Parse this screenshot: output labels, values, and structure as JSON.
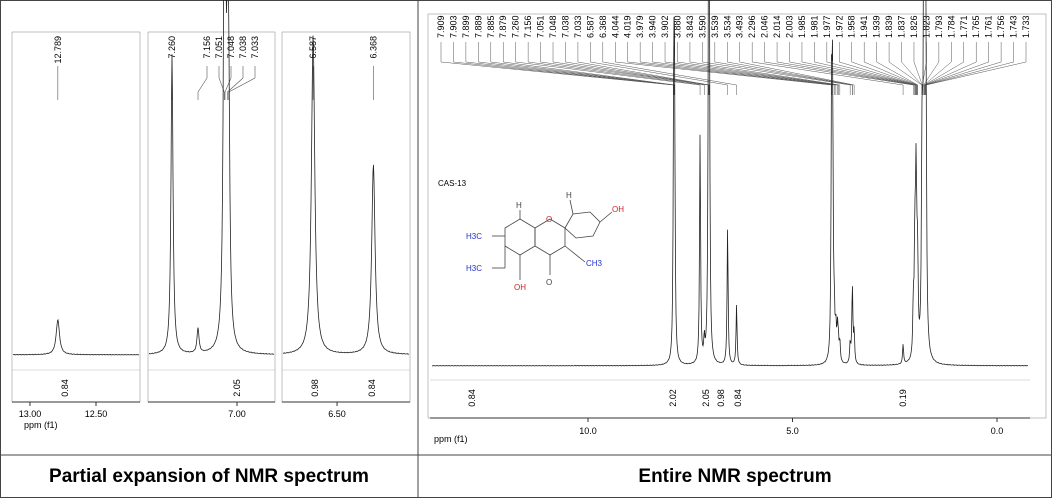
{
  "left_panel": {
    "plots": [
      {
        "peaks": [
          "12.789"
        ],
        "integrals": [
          "0.84"
        ],
        "ticks": [
          "13.00",
          "12.50"
        ],
        "axis_label": "ppm (f1)"
      },
      {
        "peaks": [
          "7.260",
          "7.156",
          "7.051",
          "7.048",
          "7.038",
          "7.033"
        ],
        "integrals": [
          "2.05"
        ],
        "ticks": [
          "7.00"
        ]
      },
      {
        "peaks": [
          "6.587",
          "6.368"
        ],
        "integrals": [
          "0.98",
          "0.84"
        ],
        "ticks": [
          "6.50"
        ]
      }
    ],
    "caption": "Partial expansion of NMR spectrum"
  },
  "right_panel": {
    "sample": "CAS-13",
    "peaks": [
      "7.909",
      "7.903",
      "7.899",
      "7.889",
      "7.885",
      "7.879",
      "7.260",
      "7.156",
      "7.051",
      "7.048",
      "7.038",
      "7.033",
      "6.587",
      "6.368",
      "4.044",
      "4.019",
      "3.979",
      "3.940",
      "3.902",
      "3.880",
      "3.843",
      "3.590",
      "3.539",
      "3.534",
      "3.493",
      "2.296",
      "2.046",
      "2.014",
      "2.003",
      "1.985",
      "1.981",
      "1.977",
      "1.972",
      "1.958",
      "1.941",
      "1.939",
      "1.839",
      "1.837",
      "1.826",
      "1.823",
      "1.793",
      "1.784",
      "1.771",
      "1.765",
      "1.761",
      "1.756",
      "1.743",
      "1.733"
    ],
    "integrals": [
      "0.84",
      "2.02",
      "2.05",
      "0.98",
      "0.84",
      "0.19"
    ],
    "ticks": [
      "10.0",
      "5.0",
      "0.0"
    ],
    "axis_label": "ppm (f1)",
    "structure": {
      "left_top": "H3C",
      "left_bottom": "H3C",
      "oxygen": "O",
      "hydroxyl_a": "OH",
      "hydroxyl_b": "OH",
      "methoxy": "CH3",
      "carbonyl": "O",
      "h_a": "H",
      "h_b": "H"
    },
    "caption": "Entire NMR spectrum"
  }
}
